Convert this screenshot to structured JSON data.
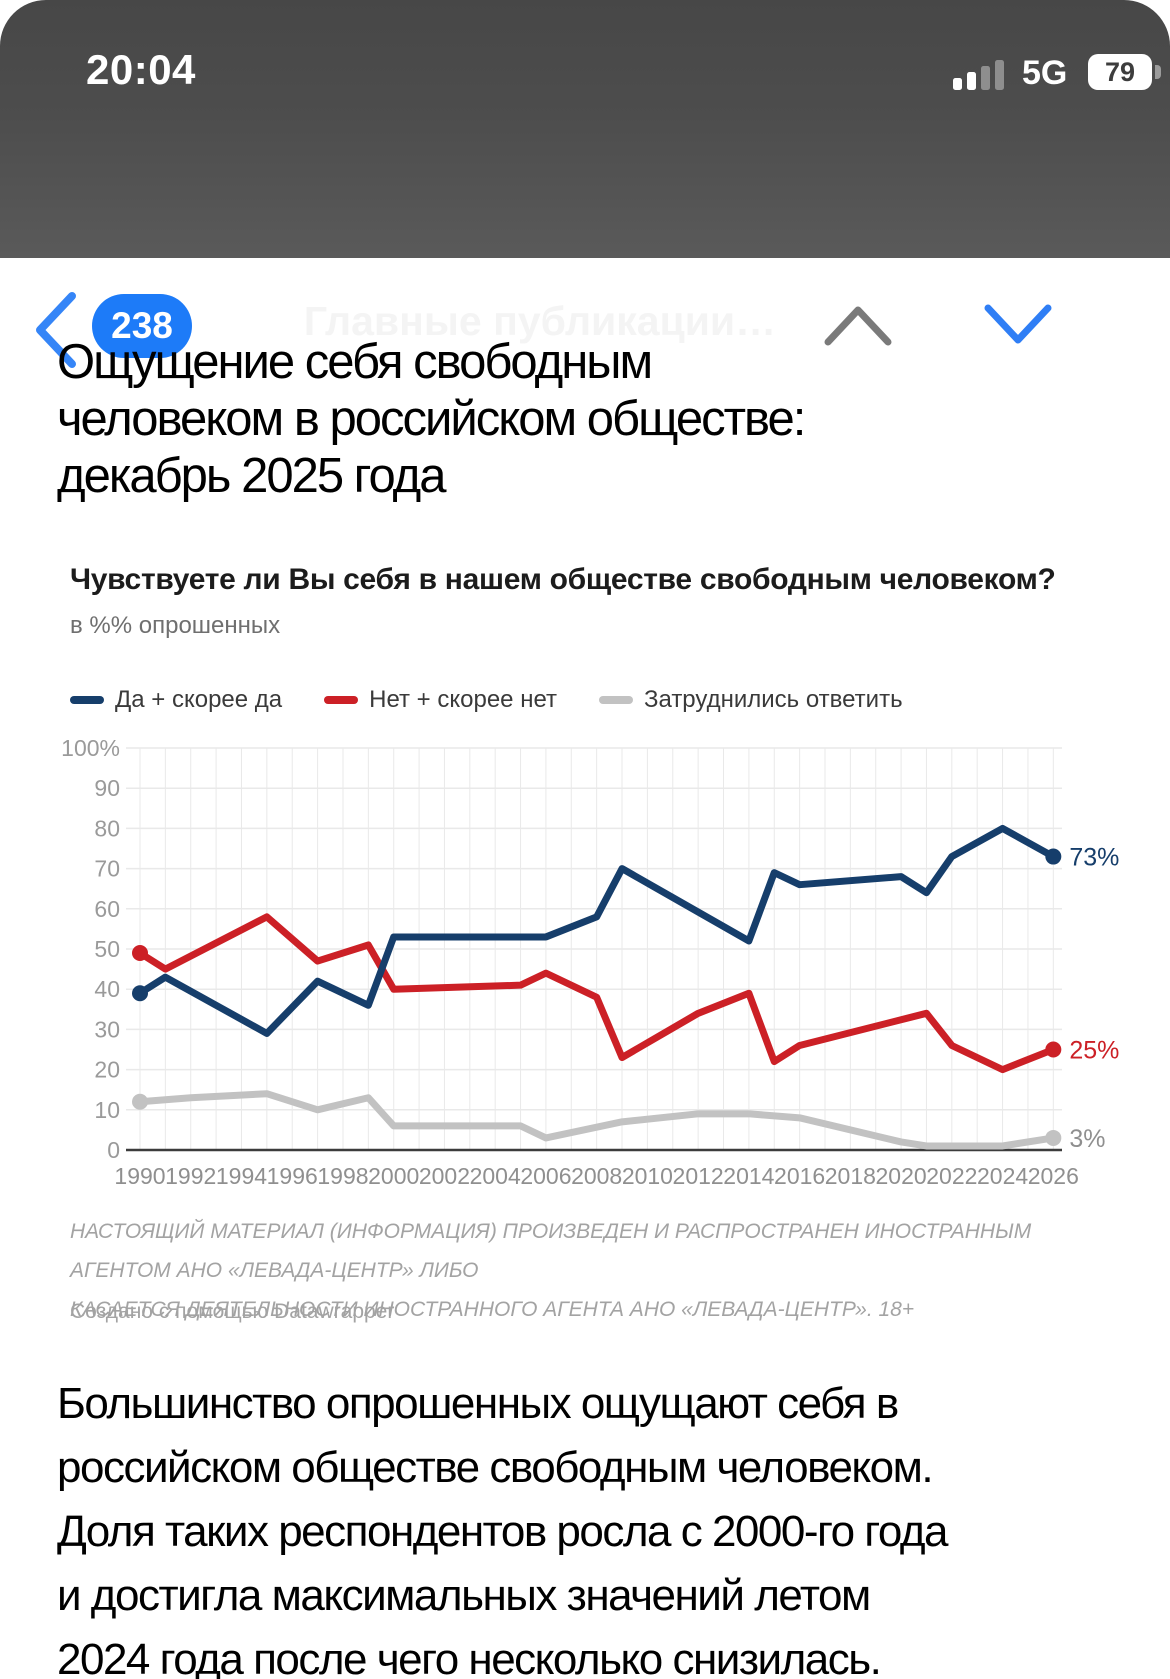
{
  "status_bar": {
    "time": "20:04",
    "network": "5G",
    "battery": "79"
  },
  "nav_bar": {
    "badge": "238",
    "title": "Главные публикации…"
  },
  "article": {
    "title_lines": [
      "Ощущение себя свободным",
      "человеком в российском обществе:",
      "декабрь 2025 года"
    ],
    "body_lines": [
      "Большинство опрошенных ощущают себя в",
      "российском обществе свободным человеком.",
      "Доля таких респондентов росла с 2000-го года",
      "и достигла максимальных значений летом",
      "2024 года после чего несколько снизилась."
    ]
  },
  "chart": {
    "title": "Чувствуете ли Вы себя в нашем обществе свободным человеком?",
    "subtitle": "в %% опрошенных",
    "legend": [
      {
        "label": "Да + скорее да",
        "color": "#163e6b"
      },
      {
        "label": "Нет + скорее нет",
        "color": "#cc2026"
      },
      {
        "label": "Затруднились ответить",
        "color": "#c2c2c2"
      }
    ],
    "footnote_lines": [
      "НАСТОЯЩИЙ МАТЕРИАЛ (ИНФОРМАЦИЯ) ПРОИЗВЕДЕН И РАСПРОСТРАНЕН ИНОСТРАННЫМ АГЕНТОМ АНО «ЛЕВАДА-ЦЕНТР» ЛИБО",
      "КАСАЕТСЯ ДЕЯТЕЛЬНОСТИ ИНОСТРАННОГО АГЕНТА АНО «ЛЕВАДА-ЦЕНТР». 18+"
    ],
    "credit": "Создано с помощью Datawrapper"
  },
  "chart_data": {
    "type": "line",
    "title": "Чувствуете ли Вы себя в нашем обществе свободным человеком?",
    "subtitle": "в %% опрошенных",
    "grid": true,
    "legend_position": "top",
    "x_axis": {
      "min": 1990,
      "max": 2026,
      "tick_labels": [
        "1990",
        "1992",
        "1994",
        "1996",
        "1998",
        "2000",
        "2002",
        "2004",
        "2006",
        "2008",
        "2010",
        "2012",
        "2014",
        "2016",
        "2018",
        "2020",
        "2022",
        "2024",
        "2026"
      ]
    },
    "y_axis": {
      "min": 0,
      "max": 100,
      "tick_labels": [
        "100%",
        "90",
        "80",
        "70",
        "60",
        "50",
        "40",
        "30",
        "20",
        "10",
        "0"
      ]
    },
    "series": [
      {
        "name": "Да + скорее да",
        "color": "#163e6b",
        "end_label": "73%",
        "end_label_color": "#163e6b",
        "points": [
          [
            1990,
            39
          ],
          [
            1991,
            43
          ],
          [
            1995,
            29
          ],
          [
            1997,
            42
          ],
          [
            1999,
            36
          ],
          [
            2000,
            53
          ],
          [
            2006,
            53
          ],
          [
            2008,
            58
          ],
          [
            2009,
            70
          ],
          [
            2014,
            52
          ],
          [
            2015,
            69
          ],
          [
            2016,
            66
          ],
          [
            2020,
            68
          ],
          [
            2021,
            64
          ],
          [
            2022,
            73
          ],
          [
            2024,
            80
          ],
          [
            2026,
            73
          ]
        ]
      },
      {
        "name": "Нет + скорее нет",
        "color": "#cc2026",
        "end_label": "25%",
        "end_label_color": "#cc2026",
        "points": [
          [
            1990,
            49
          ],
          [
            1991,
            45
          ],
          [
            1995,
            58
          ],
          [
            1997,
            47
          ],
          [
            1999,
            51
          ],
          [
            2000,
            40
          ],
          [
            2005,
            41
          ],
          [
            2006,
            44
          ],
          [
            2008,
            38
          ],
          [
            2009,
            23
          ],
          [
            2012,
            34
          ],
          [
            2014,
            39
          ],
          [
            2015,
            22
          ],
          [
            2016,
            26
          ],
          [
            2021,
            34
          ],
          [
            2022,
            26
          ],
          [
            2024,
            20
          ],
          [
            2026,
            25
          ]
        ]
      },
      {
        "name": "Затруднились ответить",
        "color": "#c2c2c2",
        "end_label": "3%",
        "end_label_color": "#8f8f8f",
        "points": [
          [
            1990,
            12
          ],
          [
            1992,
            13
          ],
          [
            1995,
            14
          ],
          [
            1997,
            10
          ],
          [
            1999,
            13
          ],
          [
            2000,
            6
          ],
          [
            2005,
            6
          ],
          [
            2006,
            3
          ],
          [
            2009,
            7
          ],
          [
            2012,
            9
          ],
          [
            2014,
            9
          ],
          [
            2016,
            8
          ],
          [
            2020,
            2
          ],
          [
            2021,
            1
          ],
          [
            2024,
            1
          ],
          [
            2026,
            3
          ]
        ]
      }
    ]
  }
}
